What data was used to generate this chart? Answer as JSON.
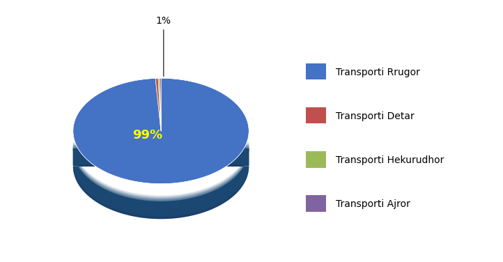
{
  "labels": [
    "Transporti Rrugor",
    "Transporti Detar",
    "Transporti Hekurudhor",
    "Transporti Ajror"
  ],
  "values": [
    99,
    0.5,
    0.3,
    0.2
  ],
  "colors": [
    "#4472C4",
    "#C0504D",
    "#9BBB59",
    "#8064A2"
  ],
  "dark_colors": [
    "#17375E",
    "#17375E",
    "#17375E",
    "#17375E"
  ],
  "pie_color_main": "#4472C4",
  "pie_color_dark": "#17375E",
  "text_99_color": "#FFFF00",
  "text_1_color": "#000000",
  "startangle": 90,
  "figsize": [
    7.22,
    3.76
  ],
  "dpi": 100,
  "legend_labels": [
    "Transporti Rrugor",
    "Transporti Detar",
    "Transporti Hekurudhor",
    "Transporti Ajror"
  ]
}
